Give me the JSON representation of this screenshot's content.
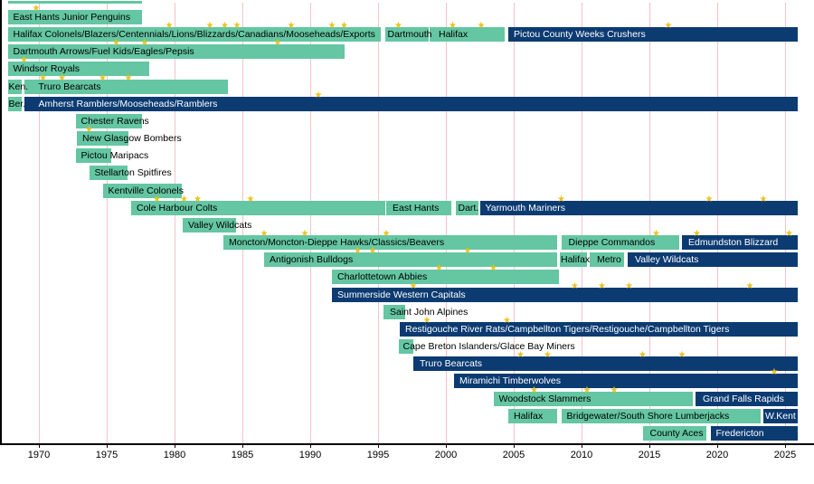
{
  "chart_data": {
    "type": "timeline",
    "title": "",
    "x_axis": {
      "range": [
        1967.5,
        2026.2
      ],
      "ticks": [
        1970,
        1975,
        1980,
        1985,
        1990,
        1995,
        2000,
        2005,
        2010,
        2015,
        2020,
        2025
      ],
      "grid": true
    },
    "colors": {
      "bar_teal": "#64c6a2",
      "bar_navy": "#0c3b72",
      "star": "#ecc21c",
      "gridline": "#f5c2ca",
      "axis": "#000000",
      "label_on_teal": "#000000",
      "label_on_navy": "#ffffff"
    },
    "star_symbol": "★",
    "top_partial_bar": {
      "start": 1967.7,
      "end": 1977.6
    },
    "rows": [
      {
        "stars": [
          1969.8
        ],
        "segments": [
          {
            "label": "East Hants Junior Penguins",
            "start": 1967.7,
            "end": 1977.6,
            "style": "teal"
          }
        ]
      },
      {
        "stars": [
          1979.6,
          1982.6,
          1983.7,
          1984.6,
          1988.6,
          1991.6,
          1992.5,
          1996.5,
          2000.5,
          2002.6,
          2016.4
        ],
        "segments": [
          {
            "label": "Halifax Colonels/Blazers/Centennials/Lions/Blizzards/Canadians/Mooseheads/Exports",
            "start": 1967.7,
            "end": 1995.2,
            "style": "teal"
          },
          {
            "label": "Dartmouth",
            "start": 1995.5,
            "end": 1998.7,
            "style": "teal",
            "pad": 3
          },
          {
            "label": "Halifax",
            "start": 1998.8,
            "end": 2004.3,
            "style": "teal",
            "pad": 10
          },
          {
            "label": "Pictou County Weeks Crushers",
            "start": 2004.6,
            "end": 2025.9,
            "style": "navy"
          }
        ]
      },
      {
        "stars": [
          1975.7,
          1977.8,
          1987.6
        ],
        "segments": [
          {
            "label": "Dartmouth Arrows/Fuel Kids/Eagles/Pepsis",
            "start": 1967.7,
            "end": 1992.5,
            "style": "teal"
          }
        ]
      },
      {
        "stars": [
          1968.9
        ],
        "segments": [
          {
            "label": "Windsor Royals",
            "start": 1967.7,
            "end": 1978.1,
            "style": "teal"
          }
        ]
      },
      {
        "stars": [
          1970.3,
          1971.7,
          1974.7,
          1976.6
        ],
        "segments": [
          {
            "label": "Ken.",
            "start": 1967.7,
            "end": 1968.7,
            "style": "teal",
            "pad": 1
          },
          {
            "label": "Truro Bearcats",
            "start": 1968.9,
            "end": 1983.9,
            "style": "teal",
            "pad": 16
          }
        ]
      },
      {
        "stars": [
          1990.6
        ],
        "segments": [
          {
            "label": "Ber.",
            "start": 1967.7,
            "end": 1968.7,
            "style": "teal",
            "pad": 1
          },
          {
            "label": "Amherst Ramblers/Mooseheads/Ramblers",
            "start": 1968.9,
            "end": 2025.9,
            "style": "navy",
            "pad": 16
          }
        ]
      },
      {
        "segments": [
          {
            "label": "Chester Ravens",
            "start": 1972.7,
            "end": 1977.6,
            "style": "teal"
          }
        ]
      },
      {
        "stars": [
          1973.7
        ],
        "segments": [
          {
            "label": "New Glasgow Bombers",
            "start": 1972.8,
            "end": 1976.6,
            "style": "teal"
          }
        ]
      },
      {
        "segments": [
          {
            "label": "Pictou Maripacs",
            "start": 1972.7,
            "end": 1975.3,
            "style": "teal"
          }
        ]
      },
      {
        "segments": [
          {
            "label": "Stellarton Spitfires",
            "start": 1973.7,
            "end": 1976.5,
            "style": "teal"
          }
        ]
      },
      {
        "segments": [
          {
            "label": "Kentville Colonels",
            "start": 1974.7,
            "end": 1980.5,
            "style": "teal"
          }
        ]
      },
      {
        "stars": [
          1978.7,
          1980.7,
          1981.7,
          1985.6,
          2008.5,
          2019.4,
          2023.4
        ],
        "segments": [
          {
            "label": "Cole Harbour Colts",
            "start": 1976.8,
            "end": 1995.5,
            "style": "teal"
          },
          {
            "label": "East Hants",
            "start": 1995.6,
            "end": 2000.4,
            "style": "teal",
            "pad": 7
          },
          {
            "label": "Dart.",
            "start": 2000.7,
            "end": 2002.4,
            "style": "teal",
            "pad": 3
          },
          {
            "label": "Yarmouth Mariners",
            "start": 2002.5,
            "end": 2025.9,
            "style": "navy"
          }
        ]
      },
      {
        "segments": [
          {
            "label": "Valley Wildcats",
            "start": 1980.6,
            "end": 1984.5,
            "style": "teal"
          }
        ]
      },
      {
        "stars": [
          1986.6,
          1989.6,
          1995.6,
          2015.5,
          2018.5,
          2025.3
        ],
        "segments": [
          {
            "label": "Moncton/Moncton-Dieppe Hawks/Classics/Beavers",
            "start": 1983.6,
            "end": 2008.2,
            "style": "teal"
          },
          {
            "label": "Dieppe Commandos",
            "start": 2008.5,
            "end": 2017.2,
            "style": "teal",
            "pad": 8
          },
          {
            "label": "Edmundston Blizzard",
            "start": 2017.4,
            "end": 2025.9,
            "style": "navy",
            "pad": 7
          }
        ]
      },
      {
        "stars": [
          1993.5,
          1994.6,
          2001.6
        ],
        "segments": [
          {
            "label": "Antigonish Bulldogs",
            "start": 1986.6,
            "end": 2008.2,
            "style": "teal"
          },
          {
            "label": "Halifax",
            "start": 2008.4,
            "end": 2010.4,
            "style": "teal",
            "pad": 1
          },
          {
            "label": "Metro",
            "start": 2010.6,
            "end": 2013.1,
            "style": "teal",
            "pad": 8
          },
          {
            "label": "Valley Wildcats",
            "start": 2013.4,
            "end": 2025.9,
            "style": "navy",
            "pad": 8
          }
        ]
      },
      {
        "stars": [
          1999.5,
          2003.5
        ],
        "segments": [
          {
            "label": "Charlottetown Abbies",
            "start": 1991.6,
            "end": 2008.3,
            "style": "teal"
          }
        ]
      },
      {
        "stars": [
          1997.6,
          2009.5,
          2011.5,
          2013.5,
          2022.4
        ],
        "segments": [
          {
            "label": "Summerside Western Capitals",
            "start": 1991.6,
            "end": 2025.9,
            "style": "navy"
          }
        ]
      },
      {
        "segments": [
          {
            "label": "Saint John Alpines",
            "start": 1995.4,
            "end": 1997.0,
            "style": "teal",
            "pad": 7
          }
        ]
      },
      {
        "stars": [
          1998.6,
          2004.5
        ],
        "segments": [
          {
            "label": "Restigouche River Rats/Campbellton Tigers/Restigouche/Campbellton Tigers",
            "start": 1996.6,
            "end": 2025.9,
            "style": "navy"
          }
        ]
      },
      {
        "segments": [
          {
            "label": "Cape Breton Islanders/Glace Bay Miners",
            "start": 1996.5,
            "end": 1997.6,
            "style": "teal",
            "pad": 5
          }
        ]
      },
      {
        "stars": [
          2005.5,
          2007.5,
          2014.5,
          2017.4
        ],
        "segments": [
          {
            "label": "Truro Bearcats",
            "start": 1997.6,
            "end": 2025.9,
            "style": "navy",
            "pad": 7
          }
        ]
      },
      {
        "stars": [
          2024.2
        ],
        "segments": [
          {
            "label": "Miramichi Timberwolves",
            "start": 2000.6,
            "end": 2025.9,
            "style": "navy"
          }
        ]
      },
      {
        "stars": [
          2006.5,
          2010.4,
          2012.4
        ],
        "segments": [
          {
            "label": "Woodstock Slammers",
            "start": 2003.5,
            "end": 2018.2,
            "style": "teal"
          },
          {
            "label": "Grand Falls Rapids",
            "start": 2018.4,
            "end": 2025.9,
            "style": "navy",
            "pad": 8
          }
        ]
      },
      {
        "segments": [
          {
            "label": "Halifax",
            "start": 2004.6,
            "end": 2008.2,
            "style": "teal",
            "pad": 6
          },
          {
            "label": "Bridgewater/South Shore Lumberjacks",
            "start": 2008.5,
            "end": 2023.2,
            "style": "teal"
          },
          {
            "label": "W.Kent",
            "start": 2023.4,
            "end": 2025.9,
            "style": "navy",
            "pad": 2
          }
        ]
      },
      {
        "segments": [
          {
            "label": "County Aces",
            "start": 2014.5,
            "end": 2019.2,
            "style": "teal",
            "pad": 8
          },
          {
            "label": "Fredericton",
            "start": 2019.5,
            "end": 2025.9,
            "style": "navy"
          }
        ]
      }
    ]
  }
}
